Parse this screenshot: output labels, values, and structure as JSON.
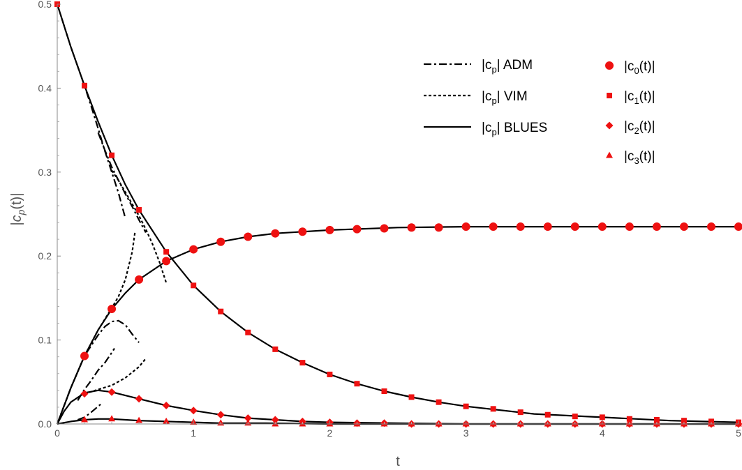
{
  "chart_data": {
    "type": "line",
    "xlabel": "t",
    "ylabel": "|c_p(t)|",
    "xlim": [
      0,
      5
    ],
    "ylim": [
      0,
      0.5
    ],
    "x_ticks": [
      "0",
      "1",
      "2",
      "3",
      "4",
      "5"
    ],
    "y_ticks": [
      "0.0",
      "0.1",
      "0.2",
      "0.3",
      "0.4",
      "0.5"
    ],
    "grid": false,
    "legend_position": "top-right",
    "legend_lines": [
      {
        "label_pre": "|c",
        "label_sub": "p",
        "label_post": "| ADM",
        "style": "dash-dot"
      },
      {
        "label_pre": "|c",
        "label_sub": "p",
        "label_post": "| VIM",
        "style": "dotted"
      },
      {
        "label_pre": "|c",
        "label_sub": "p",
        "label_post": "| BLUES",
        "style": "solid"
      }
    ],
    "legend_markers": [
      {
        "label_pre": "|c",
        "label_sub": "0",
        "label_post": "(t)|",
        "marker": "circle"
      },
      {
        "label_pre": "|c",
        "label_sub": "1",
        "label_post": "(t)|",
        "marker": "square"
      },
      {
        "label_pre": "|c",
        "label_sub": "2",
        "label_post": "(t)|",
        "marker": "diamond"
      },
      {
        "label_pre": "|c",
        "label_sub": "3",
        "label_post": "(t)|",
        "marker": "triangle"
      }
    ],
    "colors": {
      "curve": "#000000",
      "marker": "#ee1111",
      "axis": "#888888"
    },
    "blues_series": [
      {
        "x": [
          0,
          0.1,
          0.2,
          0.3,
          0.4,
          0.5,
          0.6,
          0.8,
          1,
          1.2,
          1.4,
          1.6,
          1.8,
          2,
          2.5,
          3,
          3.5,
          4,
          4.5,
          5
        ],
        "y": [
          0,
          0.043,
          0.081,
          0.112,
          0.137,
          0.156,
          0.172,
          0.194,
          0.208,
          0.217,
          0.223,
          0.227,
          0.229,
          0.231,
          0.234,
          0.235,
          0.235,
          0.235,
          0.235,
          0.235
        ]
      },
      {
        "x": [
          0,
          0.1,
          0.2,
          0.3,
          0.4,
          0.5,
          0.6,
          0.8,
          1,
          1.2,
          1.4,
          1.6,
          1.8,
          2,
          2.2,
          2.4,
          2.6,
          2.8,
          3,
          3.5,
          4,
          4.5,
          5
        ],
        "y": [
          0.5,
          0.449,
          0.403,
          0.36,
          0.32,
          0.285,
          0.255,
          0.205,
          0.165,
          0.134,
          0.109,
          0.089,
          0.073,
          0.059,
          0.048,
          0.039,
          0.032,
          0.026,
          0.021,
          0.012,
          0.008,
          0.004,
          0.002
        ]
      },
      {
        "x": [
          0,
          0.05,
          0.1,
          0.2,
          0.3,
          0.4,
          0.5,
          0.6,
          0.8,
          1,
          1.2,
          1.4,
          1.6,
          1.8,
          2,
          2.5,
          3,
          4,
          5
        ],
        "y": [
          0,
          0.015,
          0.026,
          0.037,
          0.04,
          0.038,
          0.034,
          0.03,
          0.022,
          0.016,
          0.011,
          0.007,
          0.005,
          0.003,
          0.002,
          0.001,
          0,
          0,
          0
        ]
      },
      {
        "x": [
          0,
          0.1,
          0.2,
          0.3,
          0.4,
          0.5,
          0.6,
          0.8,
          1,
          1.2,
          1.5,
          2,
          3,
          4,
          5
        ],
        "y": [
          0,
          0.003,
          0.005,
          0.006,
          0.006,
          0.005,
          0.004,
          0.003,
          0.002,
          0.001,
          0.001,
          0,
          0,
          0,
          0
        ]
      }
    ],
    "adm_series": [
      {
        "x": [
          0,
          0.1,
          0.2,
          0.25,
          0.3,
          0.35,
          0.4,
          0.45,
          0.5
        ],
        "y": [
          0.5,
          0.449,
          0.403,
          0.378,
          0.352,
          0.325,
          0.3,
          0.275,
          0.245
        ]
      },
      {
        "x": [
          0.3,
          0.35,
          0.4,
          0.45,
          0.5,
          0.55,
          0.6,
          0.65
        ],
        "y": [
          0.347,
          0.326,
          0.306,
          0.29,
          0.274,
          0.259,
          0.243,
          0.228
        ]
      },
      {
        "x": [
          0,
          0.1,
          0.2,
          0.3,
          0.35,
          0.4,
          0.45,
          0.5,
          0.55,
          0.6
        ],
        "y": [
          0,
          0.043,
          0.081,
          0.106,
          0.116,
          0.122,
          0.123,
          0.118,
          0.107,
          0.097
        ]
      },
      {
        "x": [
          0.15,
          0.2,
          0.25,
          0.3,
          0.35,
          0.4,
          0.42
        ],
        "y": [
          0.028,
          0.041,
          0.052,
          0.064,
          0.073,
          0.085,
          0.09
        ]
      },
      {
        "x": [
          0.15,
          0.2,
          0.25,
          0.3,
          0.33
        ],
        "y": [
          0.005,
          0.008,
          0.014,
          0.021,
          0.025
        ]
      }
    ],
    "vim_series": [
      {
        "x": [
          0.4,
          0.45,
          0.5,
          0.55,
          0.6,
          0.65,
          0.7,
          0.75,
          0.8
        ],
        "y": [
          0.302,
          0.29,
          0.276,
          0.262,
          0.248,
          0.232,
          0.214,
          0.193,
          0.168
        ]
      },
      {
        "x": [
          0,
          0.1,
          0.2,
          0.3,
          0.4,
          0.45,
          0.5,
          0.55,
          0.57
        ],
        "y": [
          0,
          0.043,
          0.081,
          0.112,
          0.138,
          0.152,
          0.172,
          0.205,
          0.228
        ]
      },
      {
        "x": [
          0.2,
          0.3,
          0.4,
          0.5,
          0.6,
          0.65
        ],
        "y": [
          0.036,
          0.041,
          0.046,
          0.055,
          0.068,
          0.078
        ]
      }
    ],
    "c0_points": {
      "x": [
        0.2,
        0.4,
        0.6,
        0.8,
        1,
        1.2,
        1.4,
        1.6,
        1.8,
        2,
        2.2,
        2.4,
        2.6,
        2.8,
        3,
        3.2,
        3.4,
        3.6,
        3.8,
        4,
        4.2,
        4.4,
        4.6,
        4.8,
        5
      ],
      "y": [
        0.081,
        0.137,
        0.172,
        0.194,
        0.208,
        0.217,
        0.223,
        0.227,
        0.229,
        0.231,
        0.232,
        0.233,
        0.234,
        0.234,
        0.235,
        0.235,
        0.235,
        0.235,
        0.235,
        0.235,
        0.235,
        0.235,
        0.235,
        0.235,
        0.235
      ]
    },
    "c1_points": {
      "x": [
        0,
        0.2,
        0.4,
        0.6,
        0.8,
        1,
        1.2,
        1.4,
        1.6,
        1.8,
        2,
        2.2,
        2.4,
        2.6,
        2.8,
        3,
        3.2,
        3.4,
        3.6,
        3.8,
        4,
        4.2,
        4.4,
        4.6,
        4.8,
        5
      ],
      "y": [
        0.5,
        0.403,
        0.32,
        0.255,
        0.205,
        0.165,
        0.134,
        0.109,
        0.089,
        0.073,
        0.059,
        0.048,
        0.039,
        0.032,
        0.026,
        0.021,
        0.018,
        0.014,
        0.011,
        0.009,
        0.008,
        0.006,
        0.005,
        0.004,
        0.003,
        0.002
      ]
    },
    "c2_points": {
      "x": [
        0.2,
        0.4,
        0.6,
        0.8,
        1,
        1.2,
        1.4,
        1.6,
        1.8,
        2,
        2.2,
        2.4,
        2.6,
        2.8,
        3,
        3.2,
        3.4,
        3.6,
        3.8,
        4,
        4.2,
        4.4,
        4.6,
        4.8,
        5
      ],
      "y": [
        0.036,
        0.038,
        0.03,
        0.022,
        0.016,
        0.011,
        0.007,
        0.005,
        0.003,
        0.002,
        0.001,
        0.001,
        0,
        0,
        0,
        0,
        0,
        0,
        0,
        0,
        0,
        0,
        0,
        0,
        0
      ]
    },
    "c3_points": {
      "x": [
        0.2,
        0.4,
        0.6,
        0.8,
        1,
        1.2,
        1.4,
        1.6,
        1.8,
        2,
        2.2,
        2.4,
        2.6,
        2.8,
        3,
        3.2,
        3.4,
        3.6,
        3.8,
        4,
        4.2,
        4.4,
        4.6,
        4.8,
        5
      ],
      "y": [
        0.005,
        0.006,
        0.004,
        0.003,
        0.002,
        0.001,
        0.001,
        0,
        0,
        0,
        0,
        0,
        0,
        0,
        0,
        0,
        0,
        0,
        0,
        0,
        0,
        0,
        0,
        0,
        0
      ]
    }
  }
}
